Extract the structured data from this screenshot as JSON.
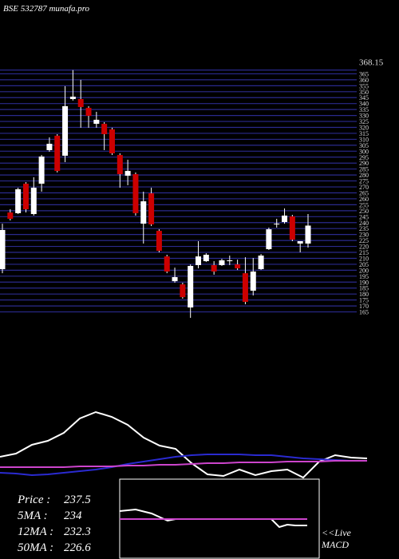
{
  "chart_data": [
    {
      "type": "candlestick",
      "title": "BSE 532787 munafa.pro",
      "open": [
        200.9,
        248.5,
        247.9,
        272.7,
        247.2,
        272.7,
        300.9,
        313.0,
        296.2,
        343.8,
        343.8,
        336.4,
        323.0,
        323.0,
        318.3,
        296.8,
        279.4,
        280.7,
        239.1,
        264.6,
        233.1,
        211.6,
        190.8,
        188.1,
        168.7,
        204.3,
        207.6,
        204.3,
        204.3,
        207.6,
        204.9,
        197.5,
        182.8,
        200.9,
        217.7,
        238.5,
        240.5,
        245.2,
        222.4,
        222.4
      ],
      "high": [
        239.1,
        251.2,
        269.3,
        274.0,
        278.1,
        296.8,
        311.6,
        314.3,
        354.6,
        368.15,
        359.9,
        337.8,
        333.1,
        324.4,
        319.7,
        298.2,
        292.8,
        282.1,
        266.0,
        269.3,
        234.4,
        213.0,
        202.2,
        189.5,
        204.9,
        224.4,
        214.3,
        207.6,
        209.6,
        212.3,
        208.9,
        210.9,
        210.3,
        213.6,
        235.8,
        243.2,
        251.9,
        246.5,
        224.4,
        247.2
      ],
      "low": [
        197.5,
        241.8,
        247.2,
        248.5,
        245.9,
        266.0,
        299.5,
        282.1,
        290.8,
        342.5,
        319.7,
        319.7,
        319.7,
        300.9,
        296.8,
        269.3,
        271.4,
        245.9,
        222.4,
        237.1,
        215.0,
        197.5,
        189.5,
        176.1,
        160.0,
        201.6,
        206.9,
        196.2,
        203.6,
        204.3,
        200.2,
        171.4,
        178.8,
        200.2,
        217.0,
        235.8,
        239.1,
        224.4,
        215.0,
        219.0
      ],
      "close": [
        233.8,
        243.2,
        268.0,
        251.2,
        269.3,
        295.5,
        306.2,
        283.4,
        337.8,
        345.8,
        337.1,
        329.7,
        326.4,
        314.3,
        298.2,
        280.7,
        283.4,
        247.9,
        257.9,
        238.5,
        216.3,
        198.9,
        194.2,
        177.4,
        203.6,
        211.6,
        213.0,
        198.9,
        208.3,
        208.3,
        201.6,
        173.4,
        198.9,
        212.3,
        234.4,
        239.1,
        245.9,
        225.7,
        224.4,
        237.5
      ],
      "ylim": [
        160,
        372
      ],
      "yticks": [
        368.15,
        365,
        360,
        355,
        350,
        345,
        340,
        335,
        330,
        325,
        320,
        315,
        310,
        305,
        300,
        295,
        290,
        285,
        280,
        275,
        270,
        265,
        260,
        255,
        250,
        245,
        240,
        235,
        230,
        225,
        220,
        215,
        210,
        205,
        200,
        195,
        190,
        185,
        180,
        175,
        170,
        165
      ],
      "grid": true,
      "grid_color": "#2a2a8c",
      "up_color": "#ffffff",
      "down_color": "#cc0000"
    },
    {
      "type": "line",
      "x": [
        0,
        20,
        40,
        60,
        80,
        100,
        120,
        140,
        160,
        180,
        200,
        220,
        240,
        260,
        280,
        300,
        320,
        340,
        360,
        380,
        400,
        420,
        440,
        460
      ],
      "xlim": [
        0,
        500
      ],
      "ylim": [
        0,
        100
      ],
      "series": [
        {
          "color": "#ffffff",
          "values": [
            28,
            32,
            43,
            48,
            58,
            76,
            84,
            78,
            68,
            52,
            42,
            38,
            20,
            6,
            4,
            12,
            5,
            10,
            12,
            2,
            22,
            30,
            27,
            26
          ]
        },
        {
          "color": "#2a2ad0",
          "values": [
            8,
            7,
            5,
            6,
            8,
            10,
            12,
            15,
            19,
            22,
            25,
            28,
            30,
            31,
            31,
            31,
            30,
            30,
            28,
            26,
            25,
            24,
            23,
            23
          ]
        },
        {
          "color": "#cc44cc",
          "values": [
            15,
            15,
            15,
            15,
            15,
            16,
            16,
            16,
            17,
            17,
            18,
            18,
            19,
            20,
            20,
            21,
            21,
            21,
            22,
            22,
            22,
            23,
            23,
            23
          ]
        }
      ]
    },
    {
      "type": "line",
      "x": [
        150,
        170,
        190,
        210,
        220,
        240,
        260,
        280,
        300,
        320,
        340,
        350,
        360,
        370,
        385
      ],
      "xlim": [
        150,
        400
      ],
      "ylim": [
        0,
        100
      ],
      "series": [
        {
          "color": "#ffffff",
          "values": [
            60,
            62,
            57,
            48,
            50,
            50,
            50,
            50,
            50,
            50,
            50,
            40,
            43,
            42,
            42
          ]
        },
        {
          "color": "#cc44cc",
          "values": [
            50,
            50,
            50,
            50,
            50,
            50,
            50,
            50,
            50,
            50,
            50,
            50,
            50,
            50,
            50
          ]
        }
      ]
    }
  ],
  "legend": {
    "stats": [
      {
        "label": "Price :",
        "value": 237.5
      },
      {
        "label": "5MA :",
        "value": 234
      },
      {
        "label": "12MA :",
        "value": 232.3
      },
      {
        "label": "50MA :",
        "value": 226.6
      }
    ],
    "annotations": [
      "<<Live",
      "MACD"
    ]
  }
}
